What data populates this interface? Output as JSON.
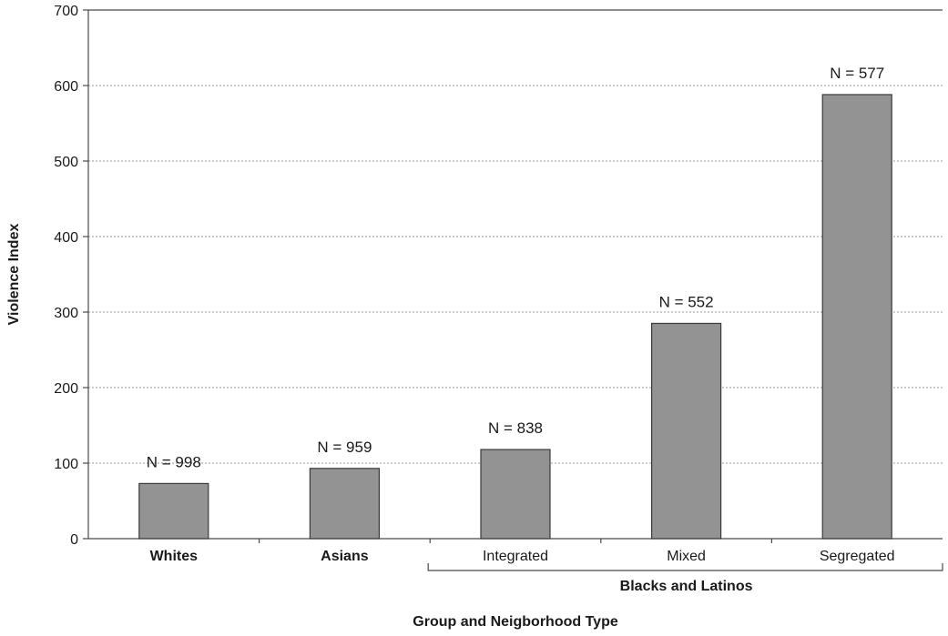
{
  "chart_data": {
    "type": "bar",
    "categories": [
      "Whites",
      "Asians",
      "Integrated",
      "Mixed",
      "Segregated"
    ],
    "category_bold": [
      true,
      true,
      false,
      false,
      false
    ],
    "values": [
      73,
      93,
      118,
      285,
      588
    ],
    "data_labels": [
      "N = 998",
      "N = 959",
      "N = 838",
      "N = 552",
      "N = 577"
    ],
    "group_label": "Blacks and Latinos",
    "xlabel": "Group and Neigborhood Type",
    "ylabel": "Violence Index",
    "ylim": [
      0,
      700
    ],
    "yticks": [
      "0",
      "100",
      "200",
      "300",
      "400",
      "500",
      "600",
      "700"
    ],
    "grid": true,
    "colors": {
      "bar_fill": "#939393",
      "bar_stroke": "#3a3a3a",
      "grid": "#9a9a9a",
      "axis": "#4a4a4a"
    }
  }
}
